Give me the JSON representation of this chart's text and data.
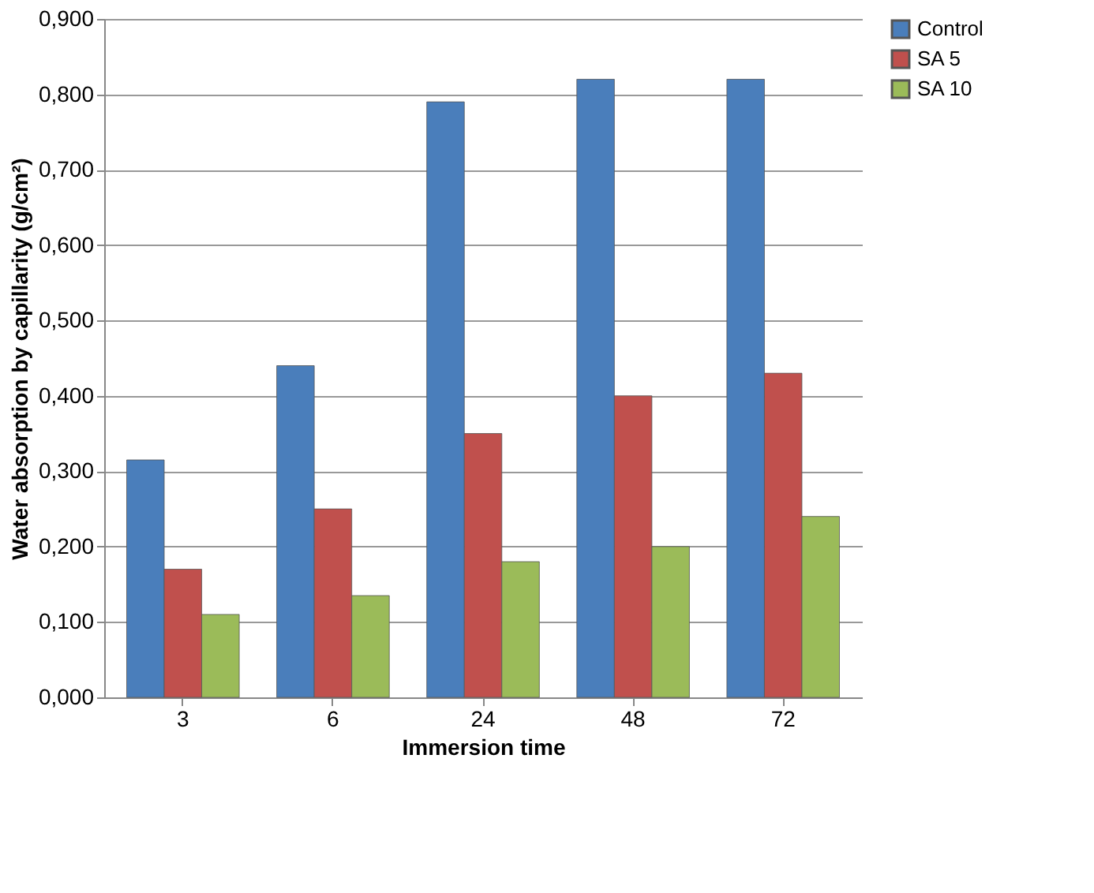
{
  "chart_data": {
    "type": "bar",
    "xlabel": "Immersion time",
    "ylabel": "Water absorption by capillarity (g/cm²)",
    "categories": [
      "3",
      "6",
      "24",
      "48",
      "72"
    ],
    "series": [
      {
        "name": "Control",
        "color": "#4a7ebb",
        "values": [
          0.315,
          0.44,
          0.79,
          0.82,
          0.82
        ]
      },
      {
        "name": "SA 5",
        "color": "#c0504d",
        "values": [
          0.17,
          0.25,
          0.35,
          0.4,
          0.43
        ]
      },
      {
        "name": "SA 10",
        "color": "#9bbb59",
        "values": [
          0.11,
          0.135,
          0.18,
          0.2,
          0.24
        ]
      }
    ],
    "ylim": [
      0,
      0.9
    ],
    "yticks": [
      {
        "value": 0,
        "label": "0,000"
      },
      {
        "value": 0.1,
        "label": "0,100"
      },
      {
        "value": 0.2,
        "label": "0,200"
      },
      {
        "value": 0.3,
        "label": "0,300"
      },
      {
        "value": 0.4,
        "label": "0,400"
      },
      {
        "value": 0.5,
        "label": "0,500"
      },
      {
        "value": 0.6,
        "label": "0,600"
      },
      {
        "value": 0.7,
        "label": "0,700"
      },
      {
        "value": 0.8,
        "label": "0,800"
      },
      {
        "value": 0.9,
        "label": "0,900"
      }
    ],
    "grid": "y",
    "legend": "right"
  }
}
